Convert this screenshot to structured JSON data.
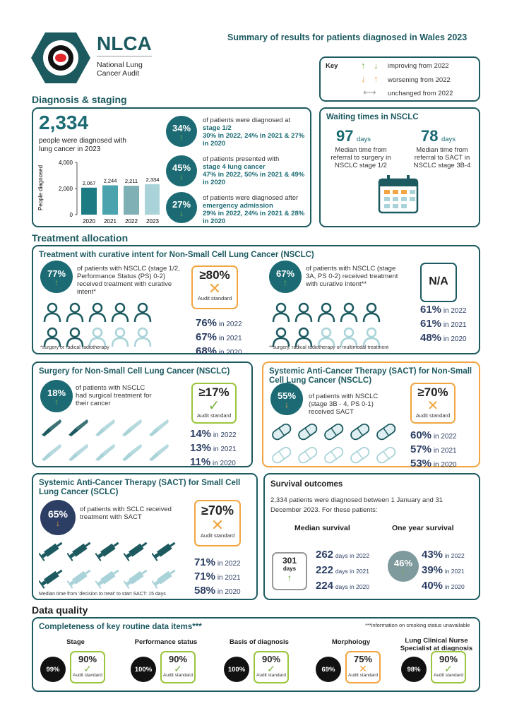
{
  "header": {
    "logo": "NLCA",
    "logo_sub": "National Lung Cancer Audit",
    "title": "Summary of results for patients diagnosed in Wales 2023"
  },
  "key": {
    "title": "Key",
    "improving": "improving from 2022",
    "worsening": "worsening from 2022",
    "unchanged": "unchanged from 2022"
  },
  "diagnosis": {
    "heading": "Diagnosis & staging",
    "total": "2,334",
    "total_desc": "people were diagnosed with lung cancer in 2023",
    "chart_ylabel": "People diagnosed",
    "items": [
      {
        "pct": "34%",
        "t1": "of patients were diagnosed at",
        "t2": "stage 1/2",
        "t3": "30% in 2022, 24% in 2021 & 27% in 2020"
      },
      {
        "pct": "45%",
        "t1": "of patients presented with",
        "t2": "stage 4 lung cancer",
        "t3": "47% in 2022, 50% in 2021 & 49% in 2020"
      },
      {
        "pct": "27%",
        "t1": "of patients were diagnosed after",
        "t2": "emergency admission",
        "t3": "29% in 2022, 24% in 2021 & 28% in 2020"
      }
    ]
  },
  "chart_data": {
    "type": "bar",
    "categories": [
      "2020",
      "2021",
      "2022",
      "2023"
    ],
    "values": [
      2067,
      2244,
      2211,
      2334
    ],
    "labels": [
      "2,067",
      "2,244",
      "2,211",
      "2,334"
    ],
    "ylabel": "People diagnosed",
    "ylim": [
      0,
      4000
    ],
    "yticks": [
      "0",
      "2,000",
      "4,000"
    ],
    "colors": [
      "#1d7b84",
      "#4ba3ad",
      "#7fb0b5",
      "#a9d3d8"
    ]
  },
  "waiting": {
    "title": "Waiting times in NSCLC",
    "a_val": "97",
    "a_unit": "days",
    "a_desc1": "Median time from",
    "a_desc2": "referral to surgery in",
    "a_desc3": "NSCLC stage 1/2",
    "b_val": "78",
    "b_unit": "days",
    "b_desc1": "Median time from",
    "b_desc2": "referral to SACT in",
    "b_desc3": "NSCLC stage 3B-4"
  },
  "treatment": {
    "heading": "Treatment allocation",
    "title": "Treatment with curative intent for Non-Small Cell Lung Cancer (NSCLC)",
    "left": {
      "pct": "77%",
      "desc": "of patients with NSCLC (stage 1/2, Performance Status (PS) 0-2) received treatment with curative intent*",
      "std": "≥80%",
      "std_lab": "Audit standard",
      "y1": "76%",
      "y1l": "in 2022",
      "y2": "67%",
      "y2l": "in 2021",
      "y3": "68%",
      "y3l": "in 2020",
      "foot": "*surgery or radical radiotherapy"
    },
    "right": {
      "pct": "67%",
      "desc": "of patients with NSCLC (stage 3A, PS 0-2) received treatment with curative intent**",
      "std": "N/A",
      "y1": "61%",
      "y1l": "in 2022",
      "y2": "61%",
      "y2l": "in 2021",
      "y3": "48%",
      "y3l": "in 2020",
      "foot": "**surgery, radical radiotherapy or multimodal treatment"
    }
  },
  "surgery": {
    "title": "Surgery for Non-Small Cell Lung Cancer (NSCLC)",
    "pct": "18%",
    "desc": "of patients with NSCLC had surgical treatment for their cancer",
    "std": "≥17%",
    "std_lab": "Audit standard",
    "y1": "14%",
    "y1l": "in 2022",
    "y2": "13%",
    "y2l": "in 2021",
    "y3": "11%",
    "y3l": "in 2020"
  },
  "sact_nsclc": {
    "title": "Systemic Anti-Cancer Therapy (SACT) for Non-Small Cell Lung Cancer (NSCLC)",
    "pct": "55%",
    "desc": "of patients with NSCLC (stage 3B - 4, PS 0-1) received SACT",
    "std": "≥70%",
    "std_lab": "Audit standard",
    "y1": "60%",
    "y1l": "in 2022",
    "y2": "57%",
    "y2l": "in 2021",
    "y3": "53%",
    "y3l": "in 2020"
  },
  "sact_sclc": {
    "title": "Systemic Anti-Cancer Therapy (SACT) for Small Cell Lung Cancer (SCLC)",
    "pct": "65%",
    "desc": "of patients with SCLC received treatment with SACT",
    "std": "≥70%",
    "std_lab": "Audit standard",
    "y1": "71%",
    "y1l": "in 2022",
    "y2": "71%",
    "y2l": "in 2021",
    "y3": "58%",
    "y3l": "in 2020",
    "foot": "Median time from 'decision to treat' to start SACT: 15 days"
  },
  "survival": {
    "title": "Survival outcomes",
    "desc": "2,334 patients were diagnosed between 1 January and 31 December 2023. For these patients:",
    "median_h": "Median survival",
    "year_h": "One year survival",
    "median_val": "301",
    "median_unit": "days",
    "m1": "262",
    "m1l": "days in 2022",
    "m2": "222",
    "m2l": "days in 2021",
    "m3": "224",
    "m3l": "days in 2020",
    "year_val": "46%",
    "o1": "43%",
    "o1l": "in 2022",
    "o2": "39%",
    "o2l": "in 2021",
    "o3": "40%",
    "o3l": "in 2020"
  },
  "data_quality": {
    "heading": "Data quality",
    "title": "Completeness of key routine data items***",
    "note": "***information on smoking status unavailable",
    "items": [
      {
        "label": "Stage",
        "val": "99%",
        "std": "90%",
        "std_lab": "Audit standard"
      },
      {
        "label": "Performance status",
        "val": "100%",
        "std": "90%",
        "std_lab": "Audit standard"
      },
      {
        "label": "Basis of diagnosis",
        "val": "100%",
        "std": "90%",
        "std_lab": "Audit standard"
      },
      {
        "label": "Morphology",
        "val": "69%",
        "std": "75%",
        "std_lab": "Audit standard"
      },
      {
        "label": "Lung Clinical Nurse Specialist at diagnosis",
        "val": "98%",
        "std": "90%",
        "std_lab": "Audit standard"
      }
    ]
  },
  "colors": {
    "teal": "#1c5a60",
    "orange": "#f2a541",
    "green": "#9bc53d",
    "navy": "#2c3e63"
  }
}
